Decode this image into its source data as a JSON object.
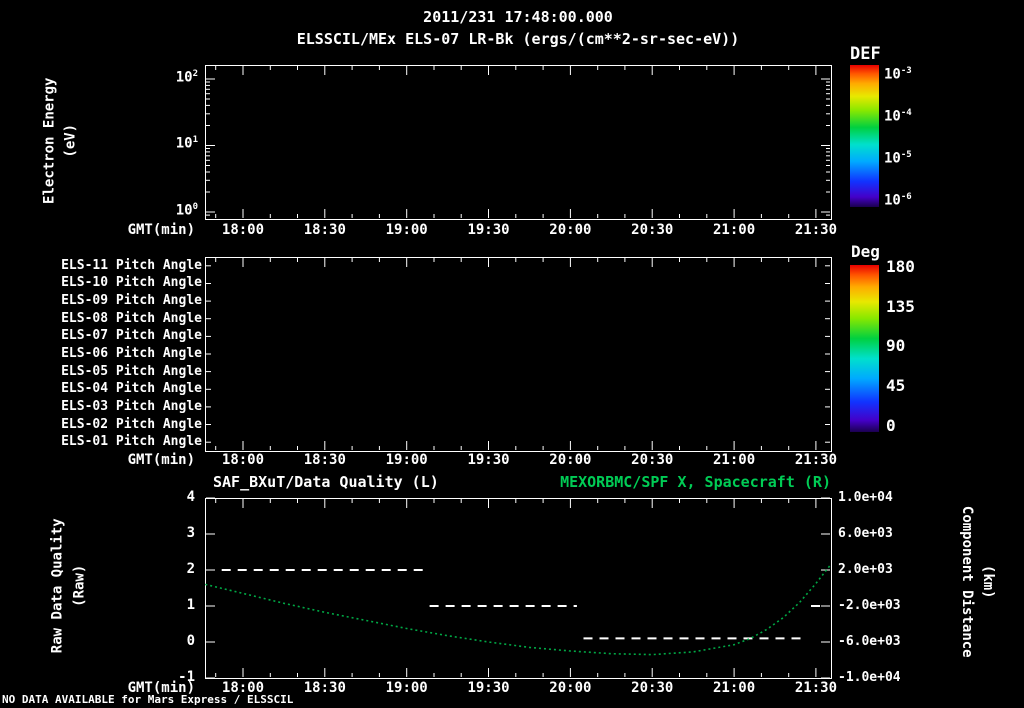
{
  "page": {
    "background": "#000000"
  },
  "header": {
    "datetime": "2011/231 17:48:00.000",
    "instrument_title": "ELSSCIL/MEx ELS-07 LR-Bk  (ergs/(cm**2-sr-sec-eV))"
  },
  "axes": {
    "gmt_label": "GMT(min)",
    "time_ticks": [
      "18:00",
      "18:30",
      "19:00",
      "19:30",
      "20:00",
      "20:30",
      "21:00",
      "21:30"
    ]
  },
  "panel_energy": {
    "ylabel_line1": "Electron Energy",
    "ylabel_line2": "(eV)",
    "ytick_exponents": [
      "2",
      "1",
      "0"
    ]
  },
  "panel_pitch": {
    "row_labels": [
      "ELS-11 Pitch Angle",
      "ELS-10 Pitch Angle",
      "ELS-09 Pitch Angle",
      "ELS-08 Pitch Angle",
      "ELS-07 Pitch Angle",
      "ELS-06 Pitch Angle",
      "ELS-05 Pitch Angle",
      "ELS-04 Pitch Angle",
      "ELS-03 Pitch Angle",
      "ELS-02 Pitch Angle",
      "ELS-01 Pitch Angle"
    ]
  },
  "panel_quality": {
    "title_left": "SAF_BXuT/Data Quality (L)",
    "title_right": "MEXORBMC/SPF X, Spacecraft (R)",
    "ylabel_left_line1": "Raw Data Quality",
    "ylabel_left_line2": "(Raw)",
    "ylabel_right_line1": "Component Distance",
    "ylabel_right_line2": "(km)",
    "yticks_left": [
      "4",
      "3",
      "2",
      "1",
      "0",
      "-1"
    ],
    "yticks_right": [
      "1.0e+04",
      "6.0e+03",
      "2.0e+03",
      "-2.0e+03",
      "-6.0e+03",
      "-1.0e+04"
    ]
  },
  "colorbar_def": {
    "title": "DEF",
    "tick_exponents": [
      "-3",
      "-4",
      "-5",
      "-6"
    ]
  },
  "colorbar_deg": {
    "title": "Deg",
    "ticks": [
      "180",
      "135",
      "90",
      "45",
      "0"
    ]
  },
  "footer": {
    "no_data_text": "NO DATA AVAILABLE for Mars Express / ELSSCIL"
  },
  "colors": {
    "green_title": "#00cc55",
    "green_curve": "#00a845",
    "axis_white": "#ffffff",
    "background": "#000000"
  },
  "chart_data": [
    {
      "type": "heatmap",
      "title": "ELSSCIL/MEx ELS-07 LR-Bk (ergs/(cm**2-sr-sec-eV))",
      "xlabel": "GMT(min)",
      "ylabel": "Electron Energy (eV)",
      "x_ticks": [
        "18:00",
        "18:30",
        "19:00",
        "19:30",
        "20:00",
        "20:30",
        "21:00",
        "21:30"
      ],
      "x_range_hours": [
        17.768,
        21.592
      ],
      "y_scale": "log",
      "y_ticks": [
        1,
        10,
        100
      ],
      "y_range": [
        0.79,
        162
      ],
      "colorbar": {
        "title": "DEF",
        "tick_labels": [
          "1e-3",
          "1e-4",
          "1e-5",
          "1e-6"
        ]
      },
      "values": [],
      "note": "panel empty - no data displayed"
    },
    {
      "type": "heatmap",
      "rows": [
        "ELS-11 Pitch Angle",
        "ELS-10 Pitch Angle",
        "ELS-09 Pitch Angle",
        "ELS-08 Pitch Angle",
        "ELS-07 Pitch Angle",
        "ELS-06 Pitch Angle",
        "ELS-05 Pitch Angle",
        "ELS-04 Pitch Angle",
        "ELS-03 Pitch Angle",
        "ELS-02 Pitch Angle",
        "ELS-01 Pitch Angle"
      ],
      "xlabel": "GMT(min)",
      "x_ticks": [
        "18:00",
        "18:30",
        "19:00",
        "19:30",
        "20:00",
        "20:30",
        "21:00",
        "21:30"
      ],
      "x_range_hours": [
        17.768,
        21.592
      ],
      "colorbar": {
        "title": "Deg",
        "tick_labels": [
          180,
          135,
          90,
          45,
          0
        ],
        "range": [
          0,
          180
        ]
      },
      "values": [],
      "note": "panel empty - no data displayed"
    },
    {
      "type": "line",
      "titles": {
        "left": "SAF_BXuT/Data Quality (L)",
        "right": "MEXORBMC/SPF X, Spacecraft (R)"
      },
      "xlabel": "GMT(min)",
      "x_ticks": [
        "18:00",
        "18:30",
        "19:00",
        "19:30",
        "20:00",
        "20:30",
        "21:00",
        "21:30"
      ],
      "x_range_hours": [
        17.768,
        21.592
      ],
      "left_axis": {
        "label": "Raw Data Quality (Raw)",
        "range": [
          -1,
          4
        ],
        "ticks": [
          4,
          3,
          2,
          1,
          0,
          -1
        ]
      },
      "right_axis": {
        "label": "Component Distance (km)",
        "range": [
          -10000,
          10000
        ],
        "ticks": [
          10000,
          6000,
          2000,
          -2000,
          -6000,
          -10000
        ]
      },
      "series": [
        {
          "name": "SAF_BXuT Data Quality",
          "axis": "left",
          "style": "dashed",
          "color": "#ffffff",
          "segments": [
            {
              "value": 2,
              "t_start": 17.87,
              "t_end": 19.11
            },
            {
              "value": 1,
              "t_start": 19.14,
              "t_end": 20.04
            },
            {
              "value": 0.1,
              "t_start": 20.08,
              "t_end": 21.44
            },
            {
              "value": 1,
              "t_start": 21.47,
              "t_end": 21.55
            }
          ]
        },
        {
          "name": "MEXORBMC/SPF X Spacecraft",
          "axis": "right",
          "style": "dotted",
          "color": "#00a845",
          "points": [
            [
              17.77,
              400
            ],
            [
              18.0,
              -600
            ],
            [
              18.25,
              -1700
            ],
            [
              18.5,
              -2700
            ],
            [
              18.75,
              -3600
            ],
            [
              19.0,
              -4500
            ],
            [
              19.25,
              -5300
            ],
            [
              19.5,
              -6000
            ],
            [
              19.75,
              -6600
            ],
            [
              20.0,
              -7000
            ],
            [
              20.25,
              -7300
            ],
            [
              20.5,
              -7400
            ],
            [
              20.75,
              -7100
            ],
            [
              21.0,
              -6300
            ],
            [
              21.1,
              -5600
            ],
            [
              21.2,
              -4600
            ],
            [
              21.3,
              -3300
            ],
            [
              21.4,
              -1600
            ],
            [
              21.5,
              500
            ],
            [
              21.59,
              2600
            ]
          ]
        }
      ]
    }
  ]
}
